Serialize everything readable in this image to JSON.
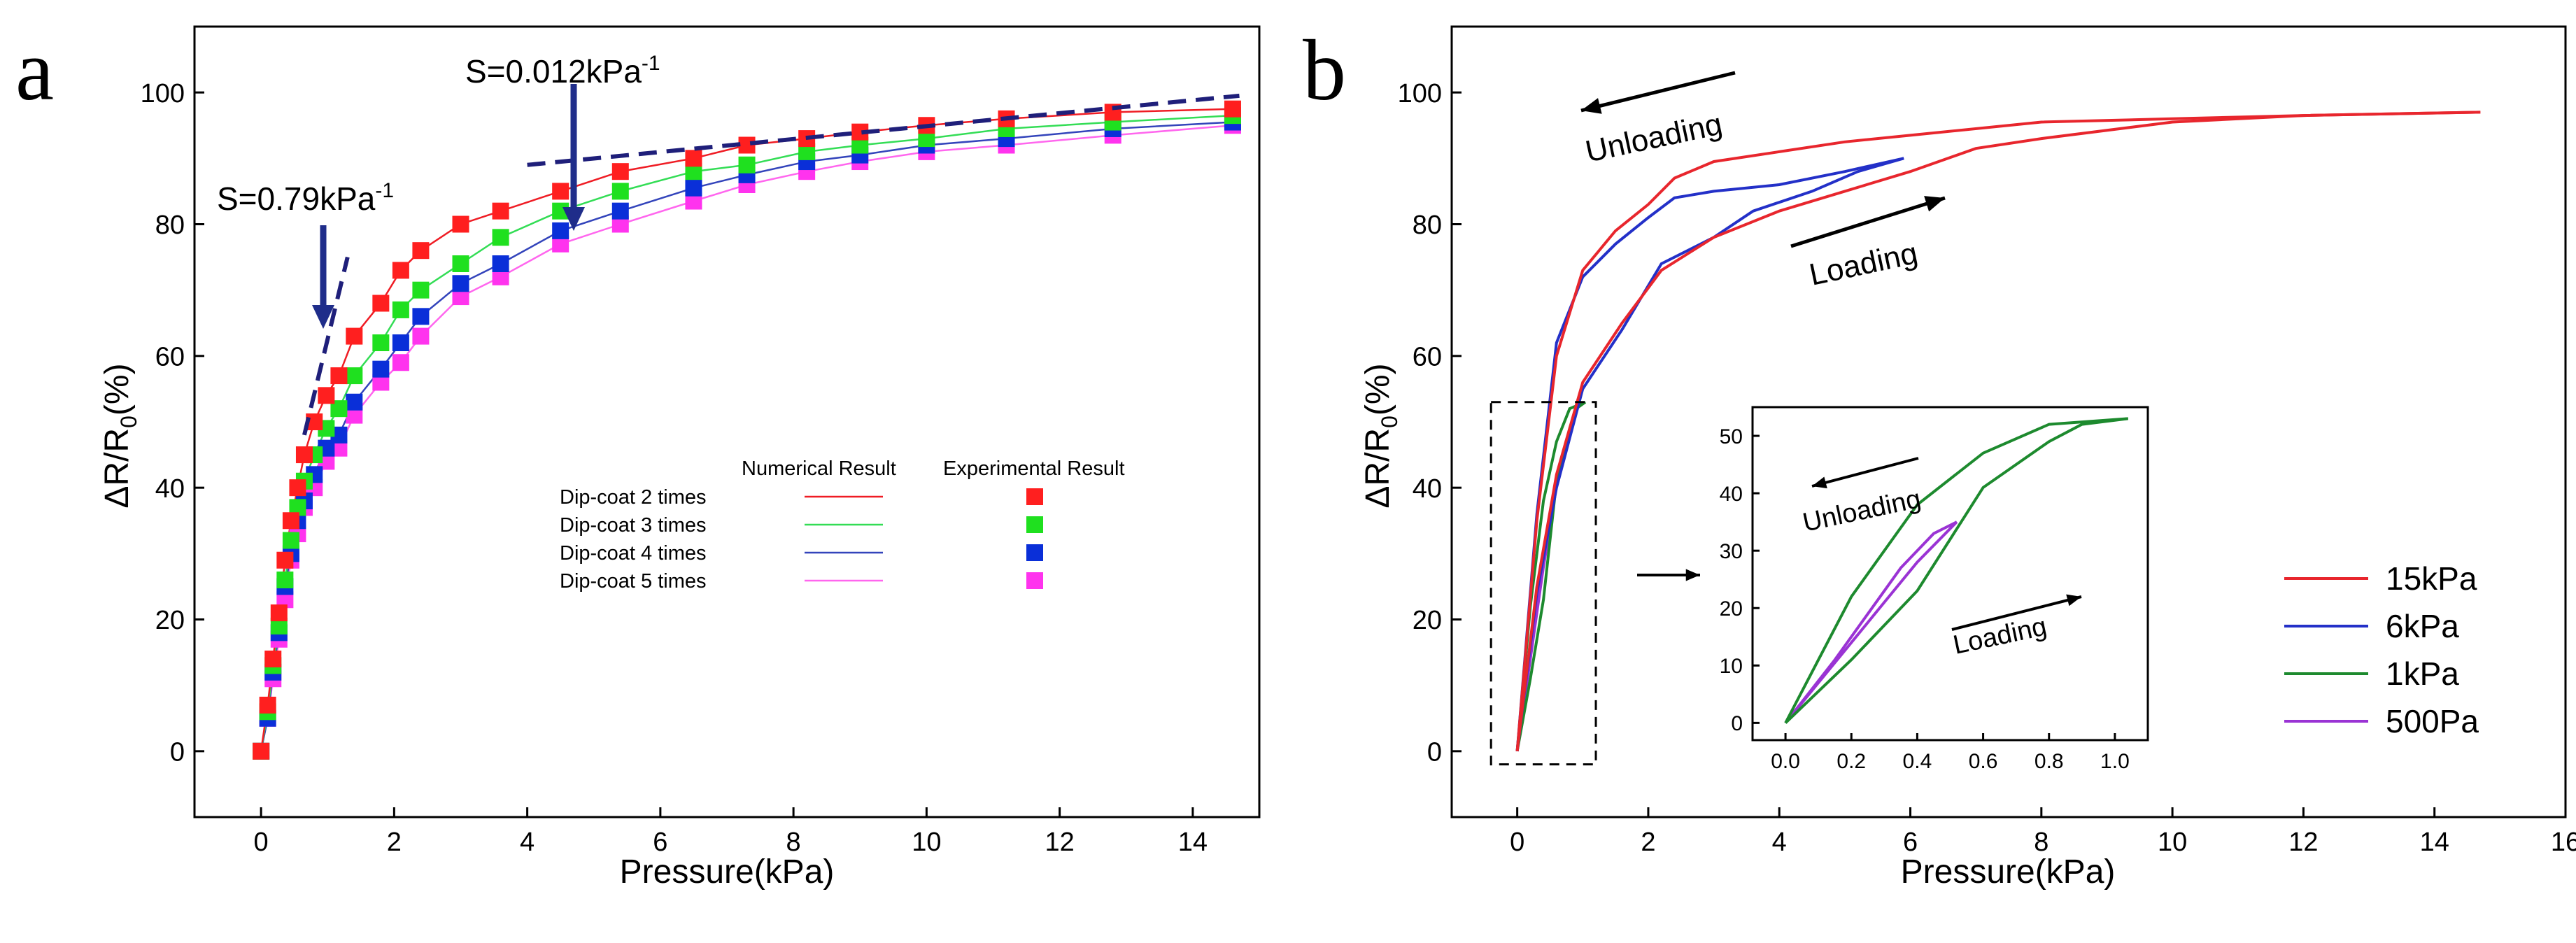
{
  "chart_data": [
    {
      "panel": "a",
      "type": "line",
      "xlabel": "Pressure(kPa)",
      "ylabel": "ΔR/R0(%)",
      "ylabel_parts": {
        "main": "ΔR/R",
        "sub": "0",
        "tail": "(%)"
      },
      "xlim": [
        -1,
        15
      ],
      "ylim": [
        -10,
        110
      ],
      "xticks": [
        0,
        2,
        4,
        6,
        8,
        10,
        12,
        14
      ],
      "yticks": [
        0,
        20,
        40,
        60,
        80,
        100
      ],
      "legend": {
        "position": "center-right",
        "header_numerical": "Numerical Result",
        "header_experimental": "Experimental Result"
      },
      "annotations": [
        {
          "label": "S=0.79kPa",
          "sup": "-1",
          "points": [
            [
              0.65,
              48
            ],
            [
              1.3,
              75
            ]
          ]
        },
        {
          "label": "S=0.012kPa",
          "sup": "-1",
          "points": [
            [
              4.0,
              89
            ],
            [
              14.7,
              99.5
            ]
          ]
        }
      ],
      "series": [
        {
          "name": "Dip-coat 2 times",
          "color": "#ef1c24",
          "marker_color": "#ff1f1f",
          "x": [
            0,
            0.1,
            0.18,
            0.27,
            0.36,
            0.45,
            0.55,
            0.65,
            0.8,
            0.98,
            1.17,
            1.4,
            1.8,
            2.1,
            2.4,
            3.0,
            3.6,
            4.5,
            5.4,
            6.5,
            7.3,
            8.2,
            9.0,
            10.0,
            11.2,
            12.8,
            14.6
          ],
          "y": [
            0,
            7,
            14,
            21,
            29,
            35,
            40,
            45,
            50,
            54,
            57,
            63,
            68,
            73,
            76,
            80,
            82,
            85,
            88,
            90,
            92,
            93,
            94,
            95,
            96,
            97,
            97.5
          ]
        },
        {
          "name": "Dip-coat 3 times",
          "color": "#33dd55",
          "marker_color": "#1fe01f",
          "x": [
            0,
            0.1,
            0.18,
            0.27,
            0.36,
            0.45,
            0.55,
            0.65,
            0.8,
            0.98,
            1.17,
            1.4,
            1.8,
            2.1,
            2.4,
            3.0,
            3.6,
            4.5,
            5.4,
            6.5,
            7.3,
            8.2,
            9.0,
            10.0,
            11.2,
            12.8,
            14.6
          ],
          "y": [
            0,
            6,
            13,
            19,
            26,
            32,
            37,
            41,
            45,
            49,
            52,
            57,
            62,
            67,
            70,
            74,
            78,
            82,
            85,
            88,
            89,
            91,
            92,
            93,
            94.5,
            95.5,
            96.5
          ]
        },
        {
          "name": "Dip-coat 4 times",
          "color": "#3344bb",
          "marker_color": "#0a2fd8",
          "x": [
            0,
            0.1,
            0.18,
            0.27,
            0.36,
            0.45,
            0.55,
            0.65,
            0.8,
            0.98,
            1.17,
            1.4,
            1.8,
            2.1,
            2.4,
            3.0,
            3.6,
            4.5,
            5.4,
            6.5,
            7.3,
            8.2,
            9.0,
            10.0,
            11.2,
            12.8,
            14.6
          ],
          "y": [
            0,
            5,
            12,
            18,
            25,
            30,
            35,
            38,
            42,
            46,
            48,
            53,
            58,
            62,
            66,
            71,
            74,
            79,
            82,
            85.5,
            87.5,
            89.5,
            90.5,
            92,
            93,
            94.5,
            95.5
          ]
        },
        {
          "name": "Dip-coat 5 times",
          "color": "#ff66ee",
          "marker_color": "#ff33ee",
          "x": [
            0,
            0.1,
            0.18,
            0.27,
            0.36,
            0.45,
            0.55,
            0.65,
            0.8,
            0.98,
            1.17,
            1.4,
            1.8,
            2.1,
            2.4,
            3.0,
            3.6,
            4.5,
            5.4,
            6.5,
            7.3,
            8.2,
            9.0,
            10.0,
            11.2,
            12.8,
            14.6
          ],
          "y": [
            0,
            5,
            11,
            17,
            23,
            29,
            33,
            37,
            40,
            44,
            46,
            51,
            56,
            59,
            63,
            69,
            72,
            77,
            80,
            83.5,
            86,
            88,
            89.5,
            91,
            92,
            93.5,
            95
          ]
        }
      ]
    },
    {
      "panel": "b",
      "type": "line",
      "xlabel": "Pressure(kPa)",
      "ylabel": "ΔR/R0(%)",
      "ylabel_parts": {
        "main": "ΔR/R",
        "sub": "0",
        "tail": "(%)"
      },
      "xlim": [
        -1,
        16
      ],
      "ylim": [
        -10,
        110
      ],
      "xticks": [
        0,
        2,
        4,
        6,
        8,
        10,
        12,
        14,
        16
      ],
      "yticks": [
        0,
        20,
        40,
        60,
        80,
        100
      ],
      "legend": {
        "position": "right"
      },
      "annotations": [
        {
          "label": "Unloading",
          "arrow": "left"
        },
        {
          "label": "Loading",
          "arrow": "right"
        }
      ],
      "series": [
        {
          "name": "15kPa",
          "color": "#e8262d",
          "loading": {
            "x": [
              0,
              0.3,
              0.6,
              1.0,
              1.6,
              2.2,
              3.0,
              4.0,
              5.0,
              6.0,
              7.0,
              8.0,
              10.0,
              12.0,
              14.7
            ],
            "y": [
              0,
              25,
              42,
              56,
              65,
              73,
              78,
              82,
              85,
              88,
              91.5,
              93,
              95.5,
              96.5,
              97
            ]
          },
          "unloading": {
            "x": [
              14.7,
              12.0,
              10.0,
              8.0,
              6.0,
              5.0,
              4.0,
              3.0,
              2.4,
              2.0,
              1.5,
              1.0,
              0.6,
              0.3,
              0
            ],
            "y": [
              97,
              96.5,
              96,
              95.5,
              93.5,
              92.5,
              91,
              89.5,
              87,
              83,
              79,
              73,
              60,
              35,
              0
            ]
          }
        },
        {
          "name": "6kPa",
          "color": "#2330c8",
          "loading": {
            "x": [
              0,
              0.3,
              0.6,
              1.0,
              1.6,
              2.2,
              3.0,
              3.6,
              4.5,
              5.2,
              5.9
            ],
            "y": [
              0,
              24,
              40,
              55,
              64,
              74,
              78,
              82,
              85,
              88,
              90
            ]
          },
          "unloading": {
            "x": [
              5.9,
              5.0,
              4.0,
              3.0,
              2.4,
              2.0,
              1.5,
              1.0,
              0.6,
              0.3,
              0
            ],
            "y": [
              90,
              88,
              86,
              85,
              84,
              81,
              77,
              72,
              62,
              36,
              0
            ]
          }
        },
        {
          "name": "1kPa",
          "color": "#1d8a2e",
          "loading": {
            "x": [
              0,
              0.2,
              0.4,
              0.6,
              0.8,
              0.9,
              1.04
            ],
            "y": [
              0,
              11,
              23,
              41,
              49,
              52,
              53
            ]
          },
          "unloading": {
            "x": [
              1.04,
              0.8,
              0.6,
              0.4,
              0.2,
              0.1,
              0
            ],
            "y": [
              53,
              52,
              47,
              38,
              22,
              11,
              0
            ]
          }
        },
        {
          "name": "500Pa",
          "color": "#9a33d4",
          "loading": {
            "x": [
              0,
              0.1,
              0.2,
              0.3,
              0.4,
              0.52
            ],
            "y": [
              0,
              7,
              14,
              21,
              28,
              35
            ]
          },
          "unloading": {
            "x": [
              0.52,
              0.45,
              0.35,
              0.25,
              0.15,
              0
            ],
            "y": [
              35,
              33,
              27,
              19,
              11,
              0
            ]
          }
        }
      ],
      "inset": {
        "xlim": [
          -0.1,
          1.1
        ],
        "ylim": [
          -3,
          55
        ],
        "xticks": [
          0.0,
          0.2,
          0.4,
          0.6,
          0.8,
          1.0
        ],
        "xtick_labels": [
          "0.0",
          "0.2",
          "0.4",
          "0.6",
          "0.8",
          "1.0"
        ],
        "yticks": [
          0,
          10,
          20,
          30,
          40,
          50
        ],
        "annotations": [
          {
            "label": "Unloading",
            "arrow": "left"
          },
          {
            "label": "Loading",
            "arrow": "right"
          }
        ],
        "zoom_box": {
          "x_range": [
            -0.4,
            1.2
          ],
          "y_range": [
            -2,
            53
          ]
        }
      }
    }
  ],
  "panels": {
    "a": "a",
    "b": "b"
  }
}
